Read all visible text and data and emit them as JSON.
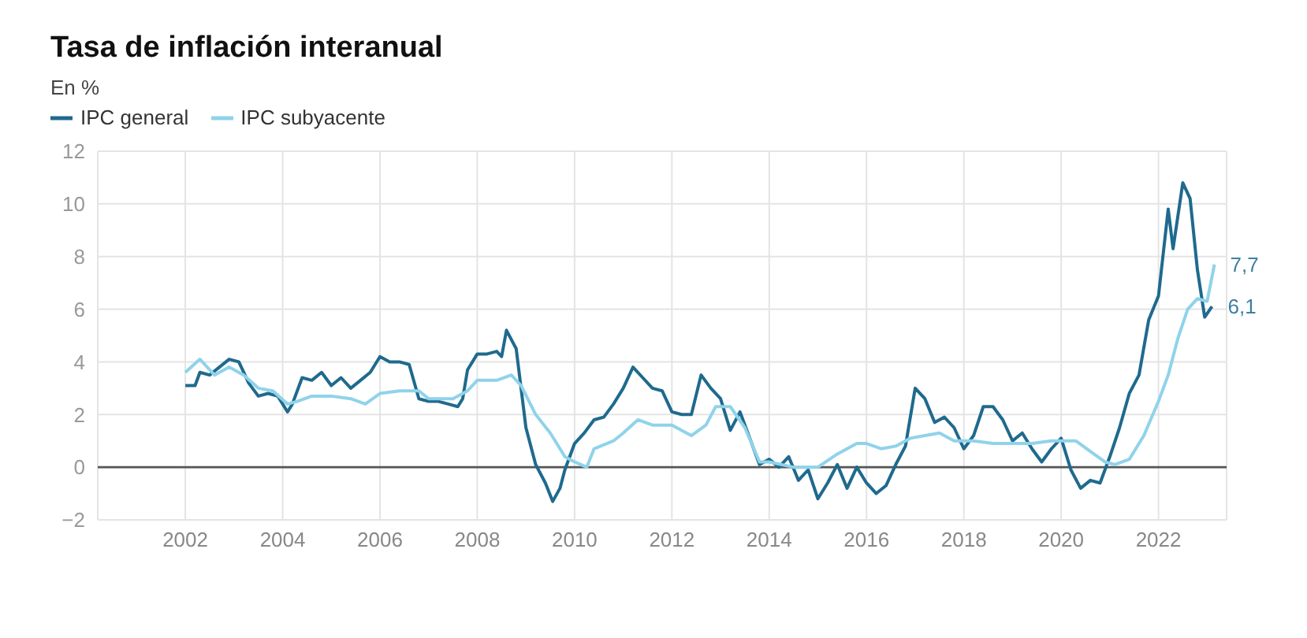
{
  "chart_data": {
    "type": "line",
    "title": "Tasa de inflación interanual",
    "subtitle": "En %",
    "xlim": [
      2000.2,
      2023.4
    ],
    "xticks": [
      2002,
      2004,
      2006,
      2008,
      2010,
      2012,
      2014,
      2016,
      2018,
      2020,
      2022
    ],
    "ylim": [
      -2,
      12
    ],
    "yticks": [
      {
        "value": -2,
        "label": "−2"
      },
      0,
      2,
      4,
      6,
      8,
      10,
      12
    ],
    "grid": true,
    "legend": "top left",
    "marker": "none",
    "line_style": "solid",
    "ref_lines": [
      {
        "axis": "y",
        "value": 0,
        "color": "#555555"
      }
    ],
    "annotations": [
      {
        "text": "7,7",
        "x": 2023.15,
        "y": 7.7
      },
      {
        "text": "6,1",
        "x": 2023.1,
        "y": 6.1
      }
    ],
    "series": [
      {
        "name": "IPC general",
        "color": "#1f6a8e",
        "x": [
          2002.0,
          2002.2,
          2002.3,
          2002.5,
          2002.7,
          2002.9,
          2003.1,
          2003.3,
          2003.5,
          2003.7,
          2003.9,
          2004.1,
          2004.2,
          2004.4,
          2004.6,
          2004.8,
          2005.0,
          2005.2,
          2005.4,
          2005.6,
          2005.8,
          2006.0,
          2006.2,
          2006.4,
          2006.6,
          2006.8,
          2007.0,
          2007.2,
          2007.4,
          2007.6,
          2007.7,
          2007.8,
          2008.0,
          2008.2,
          2008.4,
          2008.5,
          2008.6,
          2008.8,
          2009.0,
          2009.2,
          2009.4,
          2009.55,
          2009.7,
          2009.8,
          2010.0,
          2010.2,
          2010.4,
          2010.6,
          2010.8,
          2011.0,
          2011.2,
          2011.4,
          2011.6,
          2011.8,
          2012.0,
          2012.2,
          2012.4,
          2012.6,
          2012.8,
          2013.0,
          2013.2,
          2013.4,
          2013.6,
          2013.8,
          2014.0,
          2014.2,
          2014.4,
          2014.6,
          2014.8,
          2015.0,
          2015.2,
          2015.4,
          2015.6,
          2015.8,
          2016.0,
          2016.2,
          2016.4,
          2016.6,
          2016.8,
          2017.0,
          2017.2,
          2017.4,
          2017.6,
          2017.8,
          2018.0,
          2018.2,
          2018.4,
          2018.6,
          2018.8,
          2019.0,
          2019.2,
          2019.4,
          2019.6,
          2019.8,
          2020.0,
          2020.2,
          2020.4,
          2020.6,
          2020.8,
          2021.0,
          2021.2,
          2021.4,
          2021.6,
          2021.8,
          2022.0,
          2022.2,
          2022.3,
          2022.5,
          2022.65,
          2022.8,
          2022.95,
          2023.1
        ],
        "values": [
          3.1,
          3.1,
          3.6,
          3.5,
          3.8,
          4.1,
          4.0,
          3.2,
          2.7,
          2.8,
          2.7,
          2.1,
          2.4,
          3.4,
          3.3,
          3.6,
          3.1,
          3.4,
          3.0,
          3.3,
          3.6,
          4.2,
          4.0,
          4.0,
          3.9,
          2.6,
          2.5,
          2.5,
          2.4,
          2.3,
          2.6,
          3.7,
          4.3,
          4.3,
          4.4,
          4.2,
          5.2,
          4.5,
          1.5,
          0.1,
          -0.6,
          -1.3,
          -0.8,
          -0.1,
          0.9,
          1.3,
          1.8,
          1.9,
          2.4,
          3.0,
          3.8,
          3.4,
          3.0,
          2.9,
          2.1,
          2.0,
          2.0,
          3.5,
          3.0,
          2.6,
          1.4,
          2.1,
          1.1,
          0.1,
          0.3,
          0.0,
          0.4,
          -0.5,
          -0.1,
          -1.2,
          -0.6,
          0.1,
          -0.8,
          0.0,
          -0.6,
          -1.0,
          -0.7,
          0.1,
          0.8,
          3.0,
          2.6,
          1.7,
          1.9,
          1.5,
          0.7,
          1.2,
          2.3,
          2.3,
          1.8,
          1.0,
          1.3,
          0.7,
          0.2,
          0.7,
          1.1,
          -0.1,
          -0.8,
          -0.5,
          -0.6,
          0.4,
          1.5,
          2.8,
          3.5,
          5.6,
          6.5,
          9.8,
          8.3,
          10.8,
          10.2,
          7.5,
          5.7,
          6.1
        ]
      },
      {
        "name": "IPC subyacente",
        "color": "#8fd3ea",
        "x": [
          2002.0,
          2002.3,
          2002.6,
          2002.9,
          2003.2,
          2003.5,
          2003.8,
          2004.1,
          2004.3,
          2004.6,
          2005.0,
          2005.4,
          2005.7,
          2006.0,
          2006.4,
          2006.8,
          2007.0,
          2007.5,
          2007.8,
          2008.0,
          2008.4,
          2008.7,
          2008.9,
          2009.2,
          2009.5,
          2009.8,
          2010.0,
          2010.25,
          2010.4,
          2010.8,
          2011.0,
          2011.3,
          2011.6,
          2012.0,
          2012.4,
          2012.7,
          2012.9,
          2013.2,
          2013.5,
          2013.8,
          2014.0,
          2014.5,
          2015.0,
          2015.4,
          2015.8,
          2016.0,
          2016.3,
          2016.6,
          2016.9,
          2017.2,
          2017.5,
          2017.8,
          2018.2,
          2018.6,
          2019.0,
          2019.4,
          2019.8,
          2020.0,
          2020.3,
          2020.6,
          2020.9,
          2021.1,
          2021.4,
          2021.7,
          2022.0,
          2022.2,
          2022.4,
          2022.6,
          2022.8,
          2023.0,
          2023.15
        ],
        "values": [
          3.6,
          4.1,
          3.5,
          3.8,
          3.5,
          3.0,
          2.9,
          2.4,
          2.5,
          2.7,
          2.7,
          2.6,
          2.4,
          2.8,
          2.9,
          2.9,
          2.6,
          2.6,
          2.9,
          3.3,
          3.3,
          3.5,
          3.1,
          2.0,
          1.3,
          0.4,
          0.2,
          0.0,
          0.7,
          1.0,
          1.3,
          1.8,
          1.6,
          1.6,
          1.2,
          1.6,
          2.3,
          2.3,
          1.5,
          0.2,
          0.2,
          0.0,
          0.0,
          0.5,
          0.9,
          0.9,
          0.7,
          0.8,
          1.1,
          1.2,
          1.3,
          1.0,
          1.0,
          0.9,
          0.9,
          0.9,
          1.0,
          1.0,
          1.0,
          0.6,
          0.2,
          0.1,
          0.3,
          1.2,
          2.5,
          3.5,
          4.9,
          6.0,
          6.4,
          6.3,
          7.7
        ]
      }
    ]
  }
}
